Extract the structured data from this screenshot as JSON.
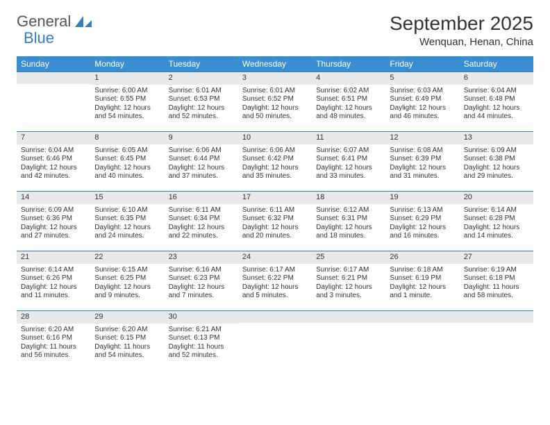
{
  "brand": {
    "part1": "General",
    "part2": "Blue",
    "logo_color": "#2f7fc2"
  },
  "title": "September 2025",
  "location": "Wenquan, Henan, China",
  "colors": {
    "header_bg": "#3a8dd0",
    "header_text": "#ffffff",
    "daynum_bg": "#e7e9ea",
    "rule": "#2f7fc2",
    "text": "#333333",
    "page_bg": "#ffffff"
  },
  "weekdays": [
    "Sunday",
    "Monday",
    "Tuesday",
    "Wednesday",
    "Thursday",
    "Friday",
    "Saturday"
  ],
  "weeks": [
    [
      {
        "n": "",
        "sr": "",
        "ss": "",
        "dl": ""
      },
      {
        "n": "1",
        "sr": "6:00 AM",
        "ss": "6:55 PM",
        "dl": "12 hours and 54 minutes."
      },
      {
        "n": "2",
        "sr": "6:01 AM",
        "ss": "6:53 PM",
        "dl": "12 hours and 52 minutes."
      },
      {
        "n": "3",
        "sr": "6:01 AM",
        "ss": "6:52 PM",
        "dl": "12 hours and 50 minutes."
      },
      {
        "n": "4",
        "sr": "6:02 AM",
        "ss": "6:51 PM",
        "dl": "12 hours and 48 minutes."
      },
      {
        "n": "5",
        "sr": "6:03 AM",
        "ss": "6:49 PM",
        "dl": "12 hours and 46 minutes."
      },
      {
        "n": "6",
        "sr": "6:04 AM",
        "ss": "6:48 PM",
        "dl": "12 hours and 44 minutes."
      }
    ],
    [
      {
        "n": "7",
        "sr": "6:04 AM",
        "ss": "6:46 PM",
        "dl": "12 hours and 42 minutes."
      },
      {
        "n": "8",
        "sr": "6:05 AM",
        "ss": "6:45 PM",
        "dl": "12 hours and 40 minutes."
      },
      {
        "n": "9",
        "sr": "6:06 AM",
        "ss": "6:44 PM",
        "dl": "12 hours and 37 minutes."
      },
      {
        "n": "10",
        "sr": "6:06 AM",
        "ss": "6:42 PM",
        "dl": "12 hours and 35 minutes."
      },
      {
        "n": "11",
        "sr": "6:07 AM",
        "ss": "6:41 PM",
        "dl": "12 hours and 33 minutes."
      },
      {
        "n": "12",
        "sr": "6:08 AM",
        "ss": "6:39 PM",
        "dl": "12 hours and 31 minutes."
      },
      {
        "n": "13",
        "sr": "6:09 AM",
        "ss": "6:38 PM",
        "dl": "12 hours and 29 minutes."
      }
    ],
    [
      {
        "n": "14",
        "sr": "6:09 AM",
        "ss": "6:36 PM",
        "dl": "12 hours and 27 minutes."
      },
      {
        "n": "15",
        "sr": "6:10 AM",
        "ss": "6:35 PM",
        "dl": "12 hours and 24 minutes."
      },
      {
        "n": "16",
        "sr": "6:11 AM",
        "ss": "6:34 PM",
        "dl": "12 hours and 22 minutes."
      },
      {
        "n": "17",
        "sr": "6:11 AM",
        "ss": "6:32 PM",
        "dl": "12 hours and 20 minutes."
      },
      {
        "n": "18",
        "sr": "6:12 AM",
        "ss": "6:31 PM",
        "dl": "12 hours and 18 minutes."
      },
      {
        "n": "19",
        "sr": "6:13 AM",
        "ss": "6:29 PM",
        "dl": "12 hours and 16 minutes."
      },
      {
        "n": "20",
        "sr": "6:14 AM",
        "ss": "6:28 PM",
        "dl": "12 hours and 14 minutes."
      }
    ],
    [
      {
        "n": "21",
        "sr": "6:14 AM",
        "ss": "6:26 PM",
        "dl": "12 hours and 11 minutes."
      },
      {
        "n": "22",
        "sr": "6:15 AM",
        "ss": "6:25 PM",
        "dl": "12 hours and 9 minutes."
      },
      {
        "n": "23",
        "sr": "6:16 AM",
        "ss": "6:23 PM",
        "dl": "12 hours and 7 minutes."
      },
      {
        "n": "24",
        "sr": "6:17 AM",
        "ss": "6:22 PM",
        "dl": "12 hours and 5 minutes."
      },
      {
        "n": "25",
        "sr": "6:17 AM",
        "ss": "6:21 PM",
        "dl": "12 hours and 3 minutes."
      },
      {
        "n": "26",
        "sr": "6:18 AM",
        "ss": "6:19 PM",
        "dl": "12 hours and 1 minute."
      },
      {
        "n": "27",
        "sr": "6:19 AM",
        "ss": "6:18 PM",
        "dl": "11 hours and 58 minutes."
      }
    ],
    [
      {
        "n": "28",
        "sr": "6:20 AM",
        "ss": "6:16 PM",
        "dl": "11 hours and 56 minutes."
      },
      {
        "n": "29",
        "sr": "6:20 AM",
        "ss": "6:15 PM",
        "dl": "11 hours and 54 minutes."
      },
      {
        "n": "30",
        "sr": "6:21 AM",
        "ss": "6:13 PM",
        "dl": "11 hours and 52 minutes."
      },
      {
        "n": "",
        "sr": "",
        "ss": "",
        "dl": ""
      },
      {
        "n": "",
        "sr": "",
        "ss": "",
        "dl": ""
      },
      {
        "n": "",
        "sr": "",
        "ss": "",
        "dl": ""
      },
      {
        "n": "",
        "sr": "",
        "ss": "",
        "dl": ""
      }
    ]
  ],
  "labels": {
    "sunrise": "Sunrise: ",
    "sunset": "Sunset: ",
    "daylight": "Daylight: "
  }
}
